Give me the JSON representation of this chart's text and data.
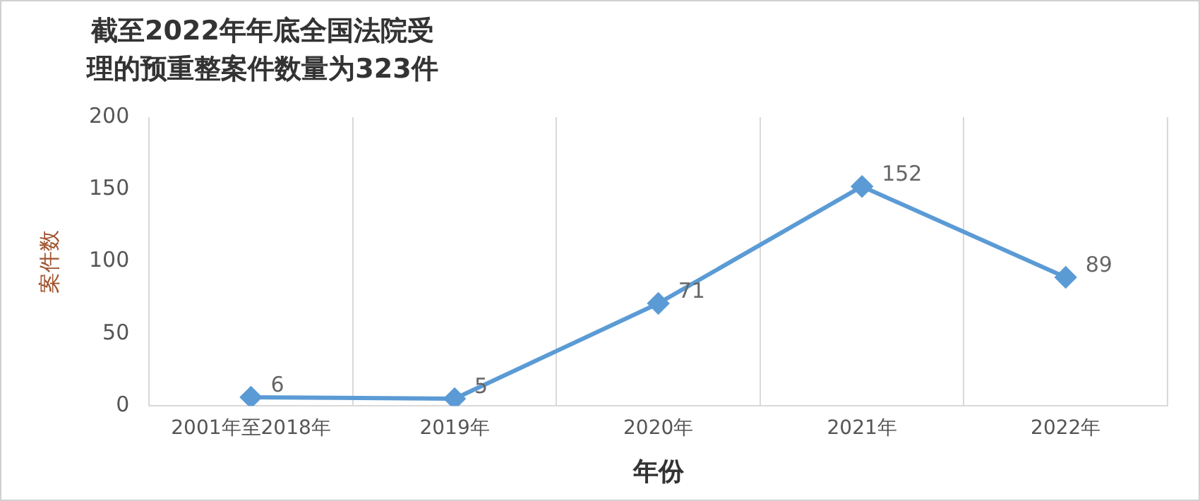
{
  "chart_data": {
    "type": "line",
    "title": "截至2022年年底全国法院受理的预重整案件数量为323件",
    "xlabel": "年份",
    "ylabel": "案件数",
    "categories": [
      "2001年至2018年",
      "2019年",
      "2020年",
      "2021年",
      "2022年"
    ],
    "series": [
      {
        "color": "#5b9bd5",
        "values": [
          6,
          5,
          71,
          152,
          89
        ]
      }
    ],
    "ylim": [
      0,
      200
    ],
    "yticks": [
      0,
      50,
      100,
      150,
      200
    ],
    "grid": "x",
    "legend": false,
    "marker": "diamond",
    "line_style": "solid",
    "data_labels": true
  }
}
